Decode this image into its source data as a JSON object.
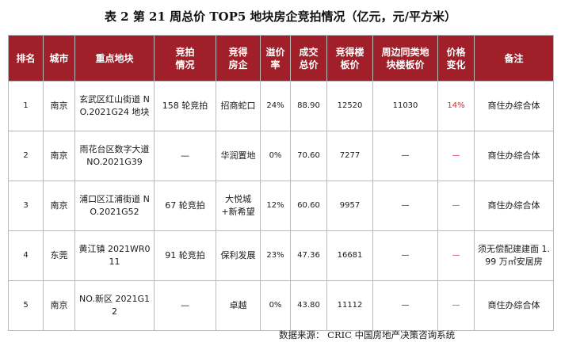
{
  "title": "表 2   第 21 周总价 TOP5 地块房企竞拍情况（亿元，元/平方米）",
  "headers": [
    "排名",
    "城市",
    "重点地块",
    "竞拍\n情况",
    "竞得\n房企",
    "溢价\n率",
    "成交\n总价",
    "竞得楼\n板价",
    "周边同类地\n块楼板价",
    "价格\n变化",
    "备注"
  ],
  "rows": [
    {
      "rank": "1",
      "city": "南京",
      "parcel": "玄武区红山街道 NO.2021G24 地块",
      "auction": "158 轮竞拍",
      "developer": "招商蛇口",
      "premium": "24%",
      "total": "88.90",
      "floor_price": "12520",
      "nearby_price": "11030",
      "change": "14%",
      "note": "商住办综合体"
    },
    {
      "rank": "2",
      "city": "南京",
      "parcel": "雨花台区数字大道 NO.2021G39",
      "auction": "—",
      "developer": "华润置地",
      "premium": "0%",
      "total": "70.60",
      "floor_price": "7277",
      "nearby_price": "—",
      "change": "—",
      "note": "商住办综合体"
    },
    {
      "rank": "3",
      "city": "南京",
      "parcel": "浦口区江浦街道 NO.2021G52",
      "auction": "67 轮竞拍",
      "developer": "大悦城+新希望",
      "premium": "12%",
      "total": "60.60",
      "floor_price": "9957",
      "nearby_price": "—",
      "change": "—",
      "note": "商住办综合体"
    },
    {
      "rank": "4",
      "city": "东莞",
      "parcel": "黄江镇 2021WR011",
      "auction": "91 轮竞拍",
      "developer": "保利发展",
      "premium": "23%",
      "total": "47.36",
      "floor_price": "16681",
      "nearby_price": "—",
      "change": "—",
      "note": "须无偿配建建面 1.99 万㎡安居房"
    },
    {
      "rank": "5",
      "city": "南京",
      "parcel": "NO.新区 2021G12",
      "auction": "—",
      "developer": "卓越",
      "premium": "0%",
      "total": "43.80",
      "floor_price": "11112",
      "nearby_price": "—",
      "change": "—",
      "note": "商住办综合体"
    }
  ],
  "source": "数据来源：  CRIC 中国房地产决策咨询系统",
  "colors": {
    "header_bg": "#a01f28",
    "header_text": "#ffffff",
    "highlight": "#e02424",
    "border": "#b9b9b9"
  }
}
